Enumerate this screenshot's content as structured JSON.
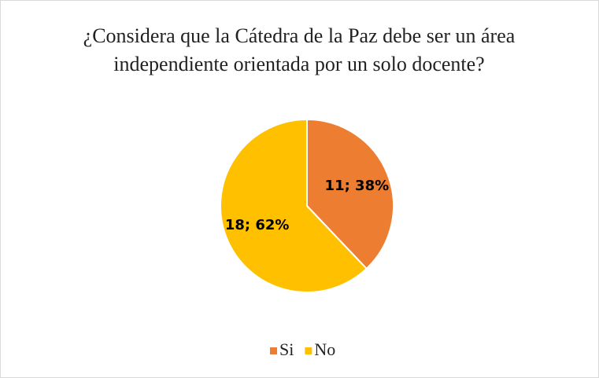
{
  "chart_data": {
    "type": "pie",
    "title": "¿Considera que la Cátedra de la Paz debe ser un área independiente orientada por un solo docente?",
    "categories": [
      "Si",
      "No"
    ],
    "values": [
      11,
      18
    ],
    "value_labels": [
      "11; 38%",
      "18; 62%"
    ],
    "colors": [
      "#ED7D31",
      "#FFC000"
    ],
    "legend": "bottom"
  }
}
